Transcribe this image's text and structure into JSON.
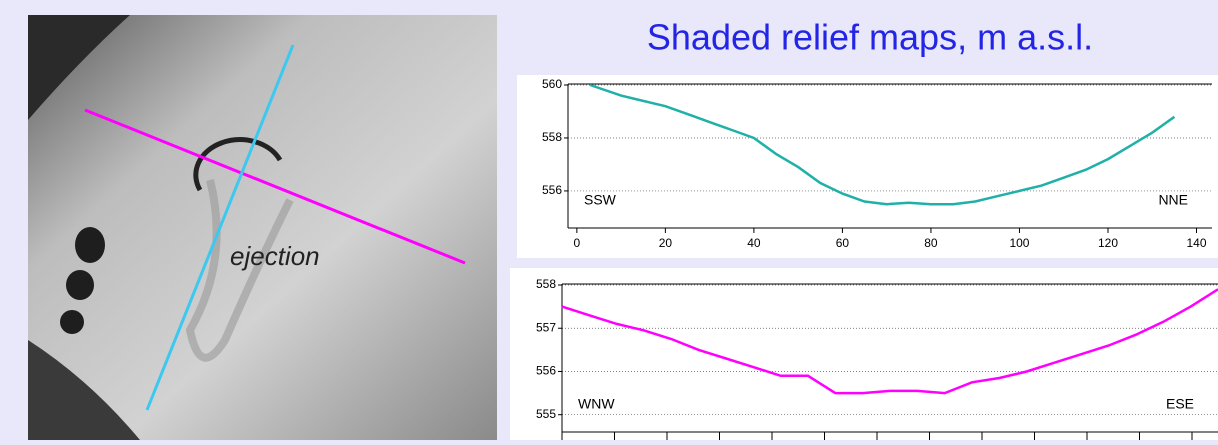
{
  "title": "Shaded relief maps, m a.s.l.",
  "map": {
    "annotation": "ejection"
  },
  "chart_data": [
    {
      "type": "line",
      "color": "#1fb0a8",
      "x": [
        3,
        10,
        20,
        25,
        30,
        35,
        40,
        45,
        50,
        55,
        60,
        65,
        70,
        75,
        80,
        85,
        90,
        95,
        100,
        105,
        110,
        115,
        120,
        125,
        130,
        135
      ],
      "values": [
        560,
        559.6,
        559.2,
        558.9,
        558.6,
        558.3,
        558,
        557.4,
        556.9,
        556.3,
        555.9,
        555.6,
        555.5,
        555.55,
        555.5,
        555.5,
        555.6,
        555.8,
        556,
        556.2,
        556.5,
        556.8,
        557.2,
        557.7,
        558.2,
        558.8
      ],
      "xlim": [
        -2,
        143.5
      ],
      "xticks": [
        0,
        20,
        40,
        60,
        80,
        100,
        120,
        140
      ],
      "ylim": [
        554.6,
        560
      ],
      "yticks": [
        556,
        558,
        560
      ],
      "grid": true,
      "annotations": [
        "SSW",
        "NNE"
      ]
    },
    {
      "type": "line",
      "color": "#ff00ff",
      "values": [
        557.5,
        557.3,
        557.1,
        556.95,
        556.75,
        556.5,
        556.3,
        556.1,
        555.9,
        555.9,
        555.5,
        555.5,
        555.55,
        555.55,
        555.5,
        555.75,
        555.85,
        556,
        556.2,
        556.4,
        556.6,
        556.85,
        557.15,
        557.5,
        557.9
      ],
      "ylim": [
        554.6,
        558
      ],
      "yticks": [
        555,
        556,
        557,
        558
      ],
      "grid": true,
      "annotations": [
        "WNW",
        "ESE"
      ]
    }
  ]
}
